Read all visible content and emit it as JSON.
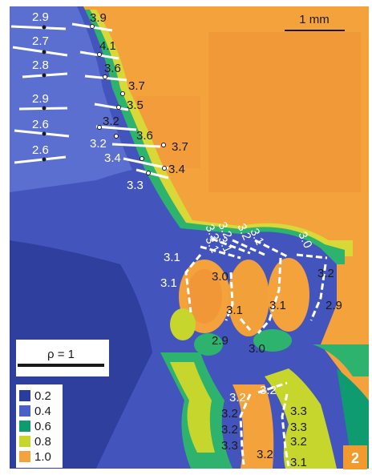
{
  "scale_bar": {
    "label": "1 mm"
  },
  "rho_bar": {
    "label": "ρ = 1"
  },
  "legend": {
    "items": [
      {
        "label": "0.2",
        "color": "#2a3d9c"
      },
      {
        "label": "0.4",
        "color": "#4960c6"
      },
      {
        "label": "0.6",
        "color": "#0e9b6f"
      },
      {
        "label": "0.8",
        "color": "#c7d62c"
      },
      {
        "label": "1.0",
        "color": "#f4a23c"
      }
    ]
  },
  "panel_number": "2",
  "colors": {
    "orange": "#f4a23c",
    "orange_dark": "#ef8f35",
    "yellow": "#d8d838",
    "green": "#2db36e",
    "teal": "#0e9b6f",
    "blue_light": "#5a6fd0",
    "blue": "#4355bd",
    "blue_dark": "#2e3f9d",
    "panel_badge": "#f29a2e"
  },
  "labels_top_left": [
    "2.9",
    "2.7",
    "2.8",
    "2.9",
    "2.6",
    "2.6"
  ],
  "labels_diagonal": [
    "3.9",
    "4.1",
    "3.6",
    "3.7",
    "3.5",
    "3.2",
    "3.6",
    "3.7",
    "3.2",
    "3.4",
    "3.4",
    "3.3"
  ],
  "labels_mid": [
    "3.3",
    "3.1",
    "3.2",
    "3.1",
    "3.2",
    "3.1",
    "3.0",
    "3.1",
    "3.0",
    "3.2",
    "3.1",
    "3.1",
    "3.1",
    "2.9",
    "2.9",
    "3.0"
  ],
  "labels_bottom": [
    "3.2",
    "3.2",
    "3.3",
    "3.2",
    "3.3",
    "3.2",
    "3.2",
    "3.3",
    "3.2",
    "3.1"
  ]
}
